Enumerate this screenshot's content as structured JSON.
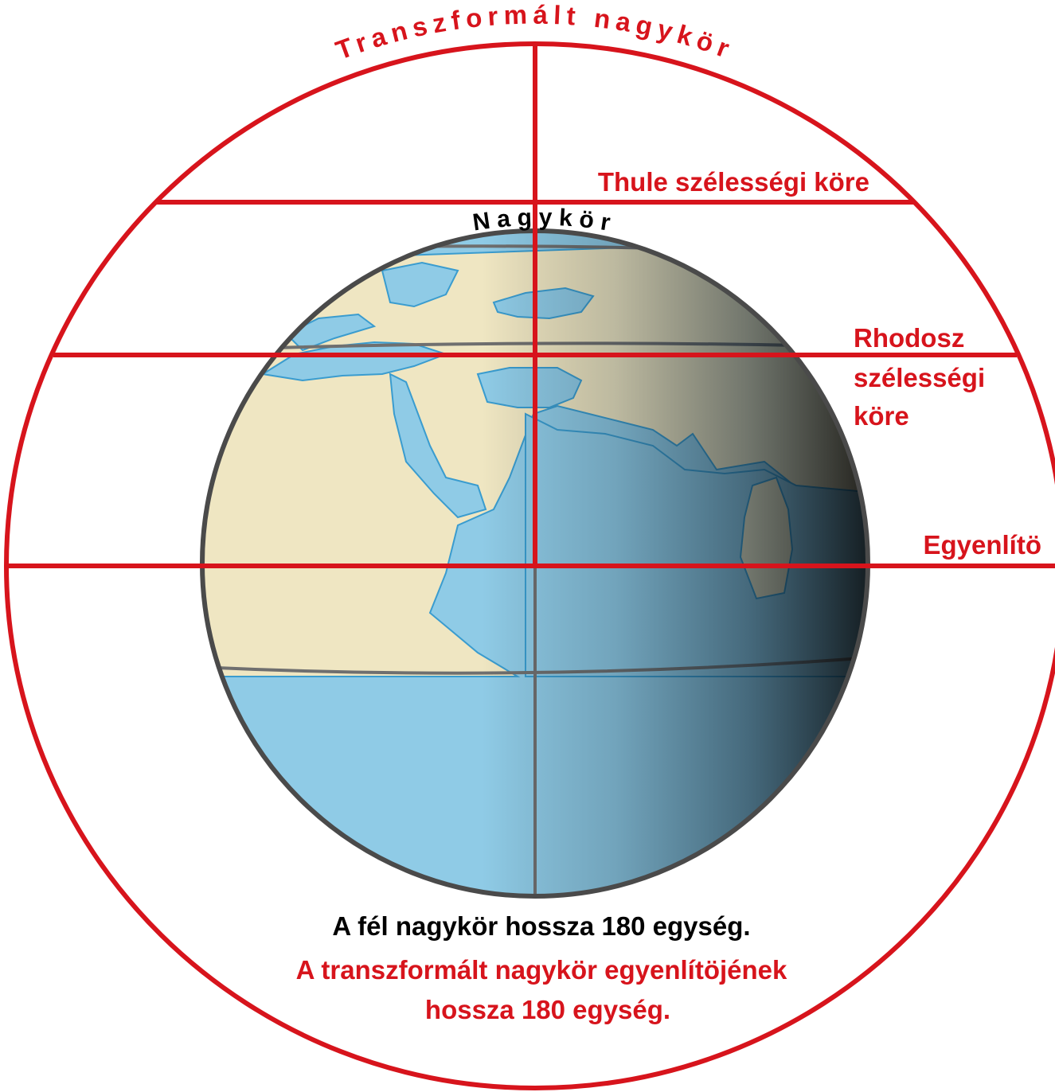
{
  "labels": {
    "transformed_great_circle": "Transzformált nagykör",
    "great_circle": "N a g y k ö r",
    "thule_parallel": "Thule szélességi köre",
    "rhodes_parallel_line1": "Rhodosz",
    "rhodes_parallel_line2": "szélességi",
    "rhodes_parallel_line3": "köre",
    "equator": "Egyenlítö"
  },
  "captions": {
    "half_great_circle": "A fél nagykör hossza 180 egység.",
    "transformed_equator_line1": "A transzformált nagykör egyenlítöjének",
    "transformed_equator_line2": "hossza 180 egység."
  },
  "colors": {
    "red": "#d7141c",
    "ocean": "#8fcbe6",
    "land": "#efe6c2",
    "land_outline": "#3a9ccf",
    "globe_rim": "#4a4a4a",
    "grid_line": "#6f6f6f"
  }
}
